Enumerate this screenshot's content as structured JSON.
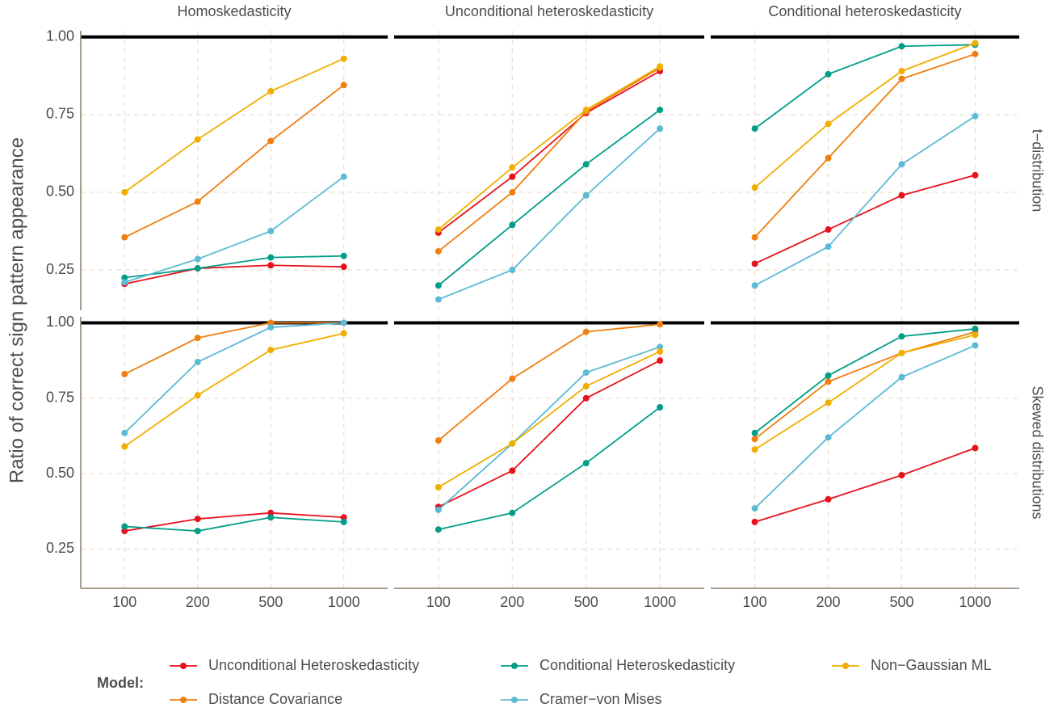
{
  "chart_data": {
    "type": "line",
    "ylabel": "Ratio of correct sign pattern appearance",
    "legend_title": "Model:",
    "legend": "bottom",
    "grid": true,
    "hline": 1,
    "columns": [
      "Homoskedasticity",
      "Unconditional heteroskedasticity",
      "Conditional heteroskedasticity"
    ],
    "rows": [
      "t−distribution",
      "Skewed distributions"
    ],
    "categories": [
      "100",
      "200",
      "500",
      "1000"
    ],
    "ylim": [
      0.12,
      1.02
    ],
    "yticks": [
      {
        "value": 0.25,
        "label": "0.25"
      },
      {
        "value": 0.5,
        "label": "0.50"
      },
      {
        "value": 0.75,
        "label": "0.75"
      },
      {
        "value": 1,
        "label": "1.00"
      }
    ],
    "series": [
      {
        "name": "Unconditional Heteroskedasticity",
        "color": "#e8121c"
      },
      {
        "name": "Distance Covariance",
        "color": "#ef7f10"
      },
      {
        "name": "Conditional Heteroskedasticity",
        "color": "#009e88"
      },
      {
        "name": "Cramer−von Mises",
        "color": "#5bbad4"
      },
      {
        "name": "Non−Gaussian ML",
        "color": "#f0ae00"
      }
    ],
    "panels": [
      {
        "series": [
          {
            "values": [
              0.205,
              0.255,
              0.265,
              0.26
            ]
          },
          {
            "values": [
              0.355,
              0.47,
              0.665,
              0.845
            ]
          },
          {
            "values": [
              0.225,
              0.255,
              0.29,
              0.295
            ]
          },
          {
            "values": [
              0.21,
              0.285,
              0.375,
              0.55
            ]
          },
          {
            "values": [
              0.5,
              0.67,
              0.825,
              0.93
            ]
          }
        ]
      },
      {
        "series": [
          {
            "values": [
              0.37,
              0.55,
              0.755,
              0.89
            ]
          },
          {
            "values": [
              0.31,
              0.5,
              0.76,
              0.9
            ]
          },
          {
            "values": [
              0.2,
              0.395,
              0.59,
              0.765
            ]
          },
          {
            "values": [
              0.155,
              0.25,
              0.49,
              0.705
            ]
          },
          {
            "values": [
              0.38,
              0.58,
              0.765,
              0.905
            ]
          }
        ]
      },
      {
        "series": [
          {
            "values": [
              0.27,
              0.38,
              0.49,
              0.555
            ]
          },
          {
            "values": [
              0.355,
              0.61,
              0.865,
              0.945
            ]
          },
          {
            "values": [
              0.705,
              0.88,
              0.97,
              0.975
            ]
          },
          {
            "values": [
              0.2,
              0.325,
              0.59,
              0.745
            ]
          },
          {
            "values": [
              0.515,
              0.72,
              0.89,
              0.98
            ]
          }
        ]
      },
      {
        "series": [
          {
            "values": [
              0.31,
              0.35,
              0.37,
              0.355
            ]
          },
          {
            "values": [
              0.83,
              0.95,
              1.0,
              1.0
            ]
          },
          {
            "values": [
              0.325,
              0.31,
              0.355,
              0.34
            ]
          },
          {
            "values": [
              0.635,
              0.87,
              0.985,
              1.0
            ]
          },
          {
            "values": [
              0.59,
              0.76,
              0.91,
              0.965
            ]
          }
        ]
      },
      {
        "series": [
          {
            "values": [
              0.39,
              0.51,
              0.75,
              0.875
            ]
          },
          {
            "values": [
              0.61,
              0.815,
              0.97,
              0.995
            ]
          },
          {
            "values": [
              0.315,
              0.37,
              0.535,
              0.72
            ]
          },
          {
            "values": [
              0.38,
              0.6,
              0.835,
              0.92
            ]
          },
          {
            "values": [
              0.455,
              0.6,
              0.79,
              0.905
            ]
          }
        ]
      },
      {
        "series": [
          {
            "values": [
              0.34,
              0.415,
              0.495,
              0.585
            ]
          },
          {
            "values": [
              0.615,
              0.805,
              0.9,
              0.97
            ]
          },
          {
            "values": [
              0.635,
              0.825,
              0.955,
              0.98
            ]
          },
          {
            "values": [
              0.385,
              0.62,
              0.82,
              0.925
            ]
          },
          {
            "values": [
              0.58,
              0.735,
              0.9,
              0.96
            ]
          }
        ]
      }
    ]
  }
}
